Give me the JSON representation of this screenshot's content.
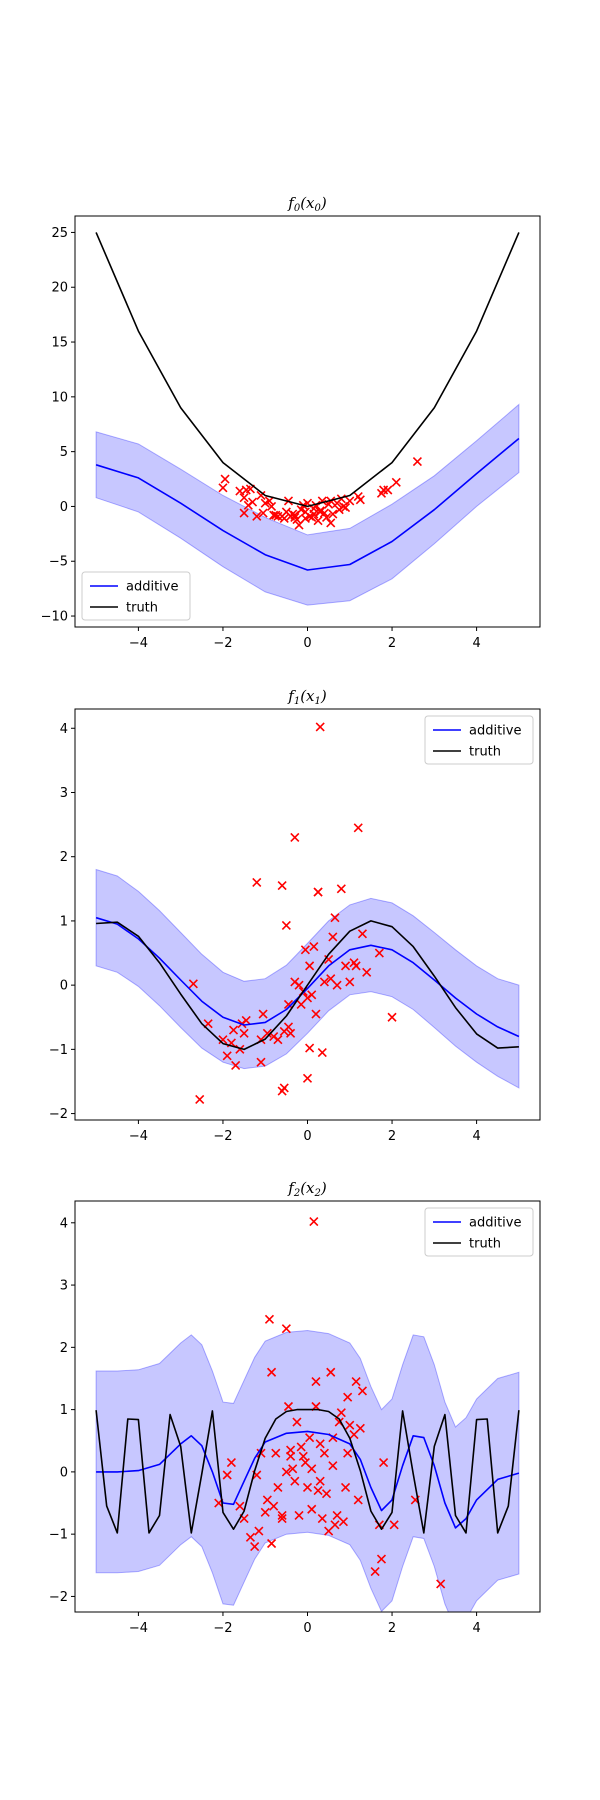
{
  "chart_data": [
    {
      "type": "line",
      "title": "f0(x0)",
      "xlim": [
        -5.5,
        5.5
      ],
      "ylim": [
        -11,
        26.5
      ],
      "xticks": [
        -4,
        -2,
        0,
        2,
        4
      ],
      "yticks": [
        -10,
        -5,
        0,
        5,
        10,
        15,
        20,
        25
      ],
      "xtick_labels": [
        "−4",
        "−2",
        "0",
        "2",
        "4"
      ],
      "ytick_labels": [
        "−10",
        "−5",
        "0",
        "5",
        "10",
        "15",
        "20",
        "25"
      ],
      "legend": {
        "placement": "lower-left",
        "entries": [
          "additive",
          "truth"
        ]
      },
      "grid": false,
      "series": [
        {
          "name": "additive",
          "color": "#0000ff",
          "x": [
            -5,
            -4,
            -3,
            -2,
            -1,
            0,
            1,
            2,
            3,
            4,
            5
          ],
          "y": [
            3.8,
            2.6,
            0.3,
            -2.2,
            -4.4,
            -5.8,
            -5.3,
            -3.2,
            -0.3,
            3.0,
            6.2
          ],
          "band_lower": [
            0.8,
            -0.5,
            -2.9,
            -5.5,
            -7.8,
            -9.0,
            -8.6,
            -6.6,
            -3.4,
            0,
            3.1
          ],
          "band_upper": [
            6.8,
            5.7,
            3.4,
            1.0,
            -1.0,
            -2.6,
            -2.0,
            0.2,
            2.8,
            6.0,
            9.3
          ]
        },
        {
          "name": "truth",
          "color": "#000000",
          "x": [
            -5,
            -4,
            -3,
            -2,
            -1,
            0,
            1,
            2,
            3,
            4,
            5
          ],
          "y": [
            25,
            16,
            9,
            4,
            1,
            0,
            1,
            4,
            9,
            16,
            25
          ]
        }
      ],
      "scatter": {
        "color": "#ff0000",
        "marker": "x",
        "x": [
          -1.95,
          -2.0,
          -1.6,
          -1.5,
          -1.45,
          -1.35,
          -1.3,
          -1.1,
          -1.05,
          -0.9,
          -0.85,
          -0.75,
          -0.6,
          -0.55,
          -0.5,
          -0.45,
          -0.4,
          -0.35,
          -0.3,
          -0.25,
          -0.2,
          -0.15,
          -0.1,
          -0.05,
          0.0,
          0.05,
          0.1,
          0.15,
          0.2,
          0.25,
          0.3,
          0.35,
          0.4,
          0.45,
          0.5,
          0.55,
          0.6,
          0.7,
          0.75,
          0.8,
          0.9,
          1.0,
          1.2,
          1.25,
          1.75,
          1.8,
          1.9,
          2.1,
          2.6,
          -1.4,
          -1.5,
          -0.8,
          -0.7,
          -0.3,
          0.15,
          0.85,
          -1.2,
          -1.0,
          0.55,
          -0.05,
          0.3
        ],
        "y": [
          2.5,
          1.7,
          1.4,
          0.8,
          1.5,
          1.6,
          0.4,
          1.0,
          -0.6,
          0.5,
          0.0,
          -0.8,
          -0.9,
          -1.1,
          -0.5,
          0.5,
          -0.9,
          -0.7,
          -1.0,
          -1.2,
          -1.7,
          -0.3,
          0.1,
          -0.5,
          0.3,
          -0.9,
          -1.0,
          -0.2,
          0.1,
          -1.3,
          -0.4,
          0.5,
          -0.6,
          -1.0,
          0.2,
          -1.5,
          -0.7,
          0.3,
          -0.3,
          0.7,
          -0.1,
          0.5,
          0.9,
          0.6,
          1.2,
          1.5,
          1.5,
          2.2,
          4.1,
          0.1,
          -0.6,
          -0.8,
          -0.9,
          -0.8,
          -0.7,
          0.0,
          -0.9,
          0.3,
          0.5,
          -1.1,
          -0.5
        ]
      }
    },
    {
      "type": "line",
      "title": "f1(x1)",
      "xlim": [
        -5.5,
        5.5
      ],
      "ylim": [
        -2.1,
        4.3
      ],
      "xticks": [
        -4,
        -2,
        0,
        2,
        4
      ],
      "yticks": [
        -2,
        -1,
        0,
        1,
        2,
        3,
        4
      ],
      "xtick_labels": [
        "−4",
        "−2",
        "0",
        "2",
        "4"
      ],
      "ytick_labels": [
        "−2",
        "−1",
        "0",
        "1",
        "2",
        "3",
        "4"
      ],
      "legend": {
        "placement": "upper-right",
        "entries": [
          "additive",
          "truth"
        ]
      },
      "grid": false,
      "series": [
        {
          "name": "additive",
          "color": "#0000ff",
          "x": [
            -5,
            -4.5,
            -4,
            -3.5,
            -3,
            -2.5,
            -2,
            -1.5,
            -1,
            -0.5,
            0,
            0.5,
            1,
            1.5,
            2,
            2.5,
            3,
            3.5,
            4,
            4.5,
            5
          ],
          "y": [
            1.05,
            0.95,
            0.72,
            0.42,
            0.08,
            -0.25,
            -0.5,
            -0.62,
            -0.58,
            -0.38,
            -0.05,
            0.3,
            0.55,
            0.62,
            0.55,
            0.35,
            0.08,
            -0.2,
            -0.45,
            -0.65,
            -0.8
          ],
          "band_lower": [
            0.3,
            0.2,
            -0.02,
            -0.32,
            -0.66,
            -0.98,
            -1.2,
            -1.3,
            -1.26,
            -1.07,
            -0.75,
            -0.4,
            -0.15,
            -0.1,
            -0.18,
            -0.38,
            -0.66,
            -0.95,
            -1.2,
            -1.42,
            -1.6
          ],
          "band_upper": [
            1.8,
            1.7,
            1.46,
            1.16,
            0.82,
            0.48,
            0.2,
            0.06,
            0.1,
            0.31,
            0.65,
            1.0,
            1.25,
            1.35,
            1.28,
            1.08,
            0.82,
            0.55,
            0.3,
            0.1,
            0.0
          ]
        },
        {
          "name": "truth",
          "color": "#000000",
          "x": [
            -5,
            -4.5,
            -4,
            -3.5,
            -3,
            -2.5,
            -2,
            -1.5,
            -1,
            -0.5,
            0,
            0.5,
            1,
            1.5,
            2,
            2.5,
            3,
            3.5,
            4,
            4.5,
            5
          ],
          "y": [
            0.96,
            0.98,
            0.76,
            0.35,
            -0.14,
            -0.6,
            -0.91,
            -1.0,
            -0.84,
            -0.48,
            0.0,
            0.48,
            0.84,
            1.0,
            0.91,
            0.6,
            0.14,
            -0.35,
            -0.76,
            -0.98,
            -0.96
          ]
        }
      ],
      "scatter": {
        "color": "#ff0000",
        "marker": "x",
        "x": [
          -2.7,
          -2.55,
          -2.35,
          -2.0,
          -1.9,
          -1.8,
          -1.75,
          -1.7,
          -1.6,
          -1.5,
          -1.45,
          -1.2,
          -1.1,
          -1.05,
          -0.95,
          -0.8,
          -0.7,
          -0.6,
          -0.55,
          -0.5,
          -0.45,
          -0.4,
          -0.3,
          -0.2,
          -0.15,
          -0.1,
          -0.05,
          0.0,
          0.05,
          0.1,
          0.15,
          0.2,
          0.25,
          0.3,
          0.35,
          0.4,
          0.5,
          0.55,
          0.6,
          0.65,
          0.7,
          0.8,
          0.9,
          1.0,
          1.1,
          1.2,
          1.3,
          1.4,
          1.7,
          2.0,
          -1.1,
          -0.6,
          -0.3,
          0.25,
          1.15,
          -0.55,
          0.0,
          0.05,
          -1.55,
          -0.45
        ],
        "y": [
          0.02,
          -1.78,
          -0.6,
          -0.85,
          -1.1,
          -0.9,
          -0.7,
          -1.25,
          -1.0,
          -0.75,
          -0.55,
          1.6,
          -0.85,
          -0.45,
          -0.75,
          -0.8,
          -0.85,
          -1.65,
          -1.6,
          0.93,
          -0.3,
          -0.75,
          2.3,
          0.0,
          -0.3,
          -0.1,
          0.55,
          -0.2,
          0.3,
          -0.15,
          0.6,
          -0.45,
          1.45,
          4.02,
          -1.05,
          0.05,
          0.4,
          0.1,
          0.75,
          1.05,
          0.0,
          1.5,
          0.3,
          0.05,
          0.35,
          2.45,
          0.8,
          0.2,
          0.5,
          -0.5,
          -1.2,
          1.55,
          0.05,
          1.45,
          0.3,
          -0.72,
          -1.45,
          -0.98,
          -0.6,
          -0.65
        ]
      }
    },
    {
      "type": "line",
      "title": "f2(x2)",
      "xlim": [
        -5.5,
        5.5
      ],
      "ylim": [
        -2.25,
        4.35
      ],
      "xticks": [
        -4,
        -2,
        0,
        2,
        4
      ],
      "yticks": [
        -2,
        -1,
        0,
        1,
        2,
        3,
        4
      ],
      "xtick_labels": [
        "−4",
        "−2",
        "0",
        "2",
        "4"
      ],
      "ytick_labels": [
        "−2",
        "−1",
        "0",
        "1",
        "2",
        "3",
        "4"
      ],
      "legend": {
        "placement": "upper-right",
        "entries": [
          "additive",
          "truth"
        ]
      },
      "grid": false,
      "series": [
        {
          "name": "additive",
          "color": "#0000ff",
          "x": [
            -5,
            -4.5,
            -4,
            -3.5,
            -3,
            -2.75,
            -2.5,
            -2.25,
            -2,
            -1.75,
            -1.5,
            -1.25,
            -1,
            -0.5,
            0,
            0.5,
            1,
            1.25,
            1.5,
            1.75,
            2,
            2.25,
            2.5,
            2.75,
            3,
            3.25,
            3.5,
            3.75,
            4,
            4.5,
            5
          ],
          "y": [
            0.0,
            0.0,
            0.02,
            0.12,
            0.45,
            0.58,
            0.42,
            0.0,
            -0.5,
            -0.52,
            -0.15,
            0.22,
            0.48,
            0.62,
            0.65,
            0.6,
            0.45,
            0.2,
            -0.25,
            -0.62,
            -0.45,
            0.1,
            0.58,
            0.55,
            0.1,
            -0.5,
            -0.9,
            -0.75,
            -0.45,
            -0.12,
            -0.02
          ],
          "band_lower": [
            -1.62,
            -1.62,
            -1.6,
            -1.5,
            -1.17,
            -1.04,
            -1.2,
            -1.62,
            -2.12,
            -2.14,
            -1.77,
            -1.4,
            -1.14,
            -1.0,
            -0.97,
            -1.02,
            -1.17,
            -1.42,
            -1.87,
            -2.24,
            -2.07,
            -1.52,
            -1.04,
            -1.07,
            -1.52,
            -2.12,
            -2.52,
            -2.37,
            -2.07,
            -1.74,
            -1.64
          ],
          "band_upper": [
            1.62,
            1.62,
            1.64,
            1.74,
            2.07,
            2.2,
            2.04,
            1.62,
            1.12,
            1.1,
            1.47,
            1.84,
            2.1,
            2.24,
            2.27,
            2.22,
            2.07,
            1.82,
            1.37,
            1.0,
            1.17,
            1.72,
            2.2,
            2.17,
            1.72,
            1.12,
            0.72,
            0.87,
            1.17,
            1.5,
            1.6
          ]
        },
        {
          "name": "truth",
          "color": "#000000",
          "x": [
            -5,
            -4.75,
            -4.5,
            -4.25,
            -4,
            -3.75,
            -3.5,
            -3.25,
            -3,
            -2.75,
            -2.5,
            -2.25,
            -2,
            -1.75,
            -1.5,
            -1.25,
            -1,
            -0.75,
            -0.5,
            -0.25,
            0,
            0.25,
            0.5,
            0.75,
            1,
            1.25,
            1.5,
            1.75,
            2,
            2.25,
            2.5,
            2.75,
            3,
            3.25,
            3.5,
            3.75,
            4,
            4.25,
            4.5,
            4.75,
            5
          ],
          "y": [
            0.99,
            -0.55,
            -0.98,
            0.85,
            0.84,
            -0.98,
            -0.7,
            0.92,
            0.41,
            -0.98,
            -0.03,
            0.98,
            -0.65,
            -0.92,
            -0.63,
            0.02,
            0.54,
            0.85,
            0.97,
            1.0,
            1.0,
            1.0,
            0.97,
            0.85,
            0.54,
            0.02,
            -0.63,
            -0.92,
            -0.65,
            0.98,
            -0.03,
            -0.98,
            0.41,
            0.92,
            -0.7,
            -0.98,
            0.84,
            0.85,
            -0.98,
            -0.55,
            0.99
          ]
        }
      ],
      "scatter": {
        "color": "#ff0000",
        "marker": "x",
        "x": [
          -2.1,
          -1.9,
          -1.8,
          -1.6,
          -1.5,
          -1.35,
          -1.25,
          -1.2,
          -1.15,
          -1.1,
          -1.0,
          -0.95,
          -0.9,
          -0.85,
          -0.8,
          -0.75,
          -0.7,
          -0.6,
          -0.5,
          -0.45,
          -0.4,
          -0.35,
          -0.3,
          -0.25,
          -0.2,
          -0.15,
          -0.1,
          -0.05,
          0.0,
          0.05,
          0.1,
          0.15,
          0.2,
          0.25,
          0.3,
          0.35,
          0.4,
          0.45,
          0.5,
          0.55,
          0.6,
          0.65,
          0.7,
          0.75,
          0.8,
          0.85,
          0.9,
          0.95,
          1.0,
          1.1,
          1.15,
          1.2,
          1.3,
          1.6,
          1.7,
          1.75,
          1.8,
          2.05,
          2.55,
          3.15,
          -0.5,
          0.2,
          0.6,
          0.95,
          1.25,
          -0.85,
          -0.4,
          0.1,
          0.3,
          -0.6
        ],
        "y": [
          -0.5,
          -0.05,
          0.15,
          -0.55,
          -0.75,
          -1.05,
          -1.2,
          -0.05,
          -0.95,
          0.3,
          -0.65,
          -0.45,
          2.45,
          1.6,
          -0.55,
          0.3,
          -0.25,
          -0.75,
          2.3,
          1.05,
          0.25,
          0.05,
          -0.15,
          0.8,
          -0.7,
          0.4,
          0.25,
          0.15,
          -0.25,
          0.55,
          0.05,
          4.02,
          1.45,
          -0.3,
          0.45,
          -0.75,
          0.3,
          -0.35,
          -0.95,
          1.6,
          0.55,
          -0.85,
          -0.7,
          0.8,
          0.95,
          -0.8,
          -0.25,
          1.2,
          0.75,
          0.6,
          1.45,
          -0.45,
          1.3,
          -1.6,
          -0.85,
          -1.4,
          0.15,
          -0.85,
          -0.45,
          -1.8,
          0.0,
          1.05,
          0.1,
          0.3,
          0.7,
          -1.15,
          0.35,
          -0.6,
          -0.15,
          -0.7
        ]
      }
    }
  ]
}
